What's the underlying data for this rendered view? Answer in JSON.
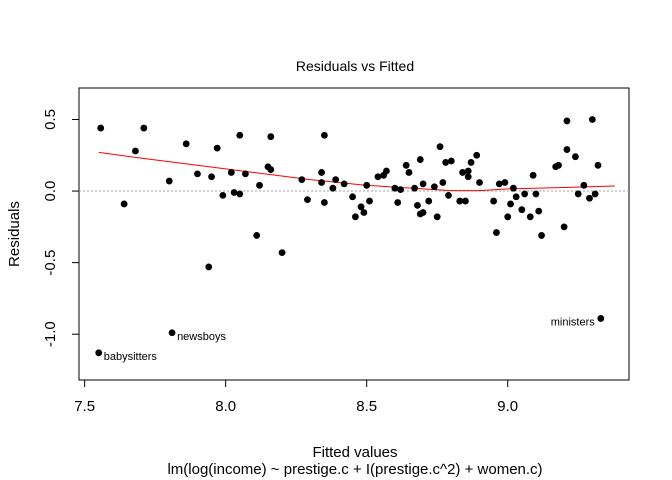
{
  "chart_data": {
    "type": "scatter",
    "title": "Residuals vs Fitted",
    "xlabel": "Fitted values",
    "subtitle": "lm(log(income) ~ prestige.c + I(prestige.c^2) + women.c)",
    "ylabel": "Residuals",
    "xlim": [
      7.48,
      9.43
    ],
    "ylim": [
      -1.32,
      0.72
    ],
    "xticks": [
      7.5,
      8.0,
      8.5,
      9.0
    ],
    "xtick_labels": [
      "7.5",
      "8.0",
      "8.5",
      "9.0"
    ],
    "yticks": [
      -1.0,
      -0.5,
      0.0,
      0.5
    ],
    "ytick_labels": [
      "-1.0",
      "-0.5",
      "0.0",
      "0.5"
    ],
    "reference_line_y": 0,
    "point_color": "#000000",
    "smooth_color": "#ff0000",
    "reference_color": "#a0a0a0",
    "points": [
      [
        7.557,
        0.44
      ],
      [
        7.64,
        -0.09
      ],
      [
        7.68,
        0.28
      ],
      [
        7.71,
        0.44
      ],
      [
        7.8,
        0.07
      ],
      [
        7.86,
        0.33
      ],
      [
        7.9,
        0.12
      ],
      [
        7.94,
        -0.53
      ],
      [
        7.95,
        0.1
      ],
      [
        7.97,
        0.3
      ],
      [
        7.99,
        -0.03
      ],
      [
        8.02,
        0.13
      ],
      [
        8.03,
        -0.01
      ],
      [
        8.05,
        0.39
      ],
      [
        8.05,
        -0.02
      ],
      [
        8.07,
        0.12
      ],
      [
        8.11,
        -0.31
      ],
      [
        8.12,
        0.04
      ],
      [
        8.15,
        0.17
      ],
      [
        8.16,
        0.15
      ],
      [
        8.16,
        0.38
      ],
      [
        8.2,
        -0.43
      ],
      [
        8.27,
        0.08
      ],
      [
        8.29,
        -0.06
      ],
      [
        8.34,
        0.06
      ],
      [
        8.34,
        0.13
      ],
      [
        8.35,
        -0.08
      ],
      [
        8.35,
        0.39
      ],
      [
        8.38,
        0.02
      ],
      [
        8.39,
        0.08
      ],
      [
        8.42,
        0.05
      ],
      [
        8.45,
        -0.04
      ],
      [
        8.46,
        -0.18
      ],
      [
        8.48,
        -0.11
      ],
      [
        8.49,
        -0.15
      ],
      [
        8.5,
        0.04
      ],
      [
        8.51,
        -0.07
      ],
      [
        8.54,
        0.1
      ],
      [
        8.56,
        0.11
      ],
      [
        8.57,
        0.14
      ],
      [
        8.6,
        0.02
      ],
      [
        8.61,
        -0.08
      ],
      [
        8.62,
        0.01
      ],
      [
        8.64,
        0.18
      ],
      [
        8.65,
        0.13
      ],
      [
        8.67,
        0.02
      ],
      [
        8.68,
        -0.1
      ],
      [
        8.69,
        -0.16
      ],
      [
        8.69,
        0.22
      ],
      [
        8.7,
        0.05
      ],
      [
        8.7,
        -0.15
      ],
      [
        8.72,
        -0.07
      ],
      [
        8.74,
        0.03
      ],
      [
        8.75,
        -0.18
      ],
      [
        8.76,
        0.31
      ],
      [
        8.77,
        0.06
      ],
      [
        8.78,
        0.2
      ],
      [
        8.79,
        -0.03
      ],
      [
        8.8,
        0.21
      ],
      [
        8.83,
        -0.07
      ],
      [
        8.84,
        0.13
      ],
      [
        8.85,
        -0.07
      ],
      [
        8.86,
        0.1
      ],
      [
        8.86,
        0.14
      ],
      [
        8.87,
        0.2
      ],
      [
        8.89,
        0.25
      ],
      [
        8.9,
        0.06
      ],
      [
        8.95,
        -0.07
      ],
      [
        8.96,
        -0.29
      ],
      [
        8.97,
        0.05
      ],
      [
        8.99,
        0.06
      ],
      [
        9.0,
        -0.18
      ],
      [
        9.01,
        -0.09
      ],
      [
        9.02,
        0.02
      ],
      [
        9.03,
        -0.04
      ],
      [
        9.05,
        -0.13
      ],
      [
        9.06,
        -0.02
      ],
      [
        9.08,
        -0.18
      ],
      [
        9.09,
        0.11
      ],
      [
        9.1,
        -0.02
      ],
      [
        9.11,
        -0.14
      ],
      [
        9.12,
        -0.31
      ],
      [
        9.17,
        0.17
      ],
      [
        9.18,
        0.18
      ],
      [
        9.2,
        -0.25
      ],
      [
        9.21,
        0.29
      ],
      [
        9.21,
        0.49
      ],
      [
        9.24,
        0.24
      ],
      [
        9.25,
        -0.02
      ],
      [
        9.27,
        0.04
      ],
      [
        9.29,
        -0.05
      ],
      [
        9.3,
        0.5
      ],
      [
        9.31,
        -0.02
      ],
      [
        9.32,
        0.18
      ]
    ],
    "labeled_points": [
      {
        "label": "babysitters",
        "x": 7.55,
        "y": -1.13,
        "side": "right"
      },
      {
        "label": "newsboys",
        "x": 7.81,
        "y": -0.99,
        "side": "right"
      },
      {
        "label": "ministers",
        "x": 9.33,
        "y": -0.89,
        "side": "left"
      }
    ],
    "smooth_line": [
      [
        7.55,
        0.27
      ],
      [
        7.7,
        0.23
      ],
      [
        7.9,
        0.18
      ],
      [
        8.1,
        0.13
      ],
      [
        8.3,
        0.08
      ],
      [
        8.5,
        0.04
      ],
      [
        8.7,
        0.015
      ],
      [
        8.8,
        0.003
      ],
      [
        8.9,
        0.003
      ],
      [
        9.0,
        0.015
      ],
      [
        9.2,
        0.025
      ],
      [
        9.38,
        0.035
      ]
    ]
  }
}
